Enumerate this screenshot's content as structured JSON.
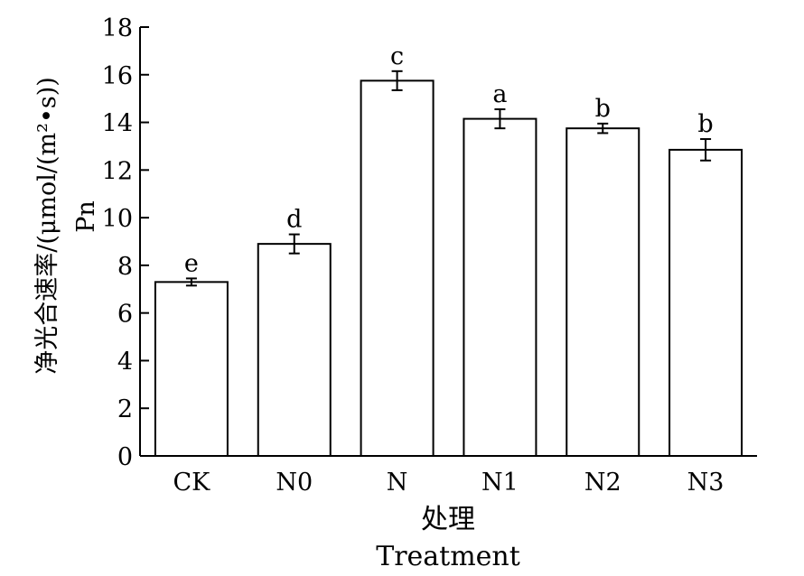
{
  "chart_data": {
    "type": "bar",
    "categories": [
      "CK",
      "N0",
      "N",
      "N1",
      "N2",
      "N3"
    ],
    "values": [
      7.3,
      8.9,
      15.75,
      14.15,
      13.75,
      12.85
    ],
    "errors": [
      0.15,
      0.4,
      0.4,
      0.4,
      0.2,
      0.45
    ],
    "significance": [
      "e",
      "d",
      "c",
      "a",
      "b",
      "b"
    ],
    "ylim": [
      0,
      18
    ],
    "yticks": [
      0,
      2,
      4,
      6,
      8,
      10,
      12,
      14,
      16,
      18
    ],
    "xlabel": [
      "处理",
      "Treatment"
    ],
    "ylabel": [
      "净光合速率/(μmol/(m²•s))",
      "Pn"
    ],
    "bar_color": "#ffffff",
    "edge_color": "#000000",
    "grid": false,
    "legend": "none"
  }
}
